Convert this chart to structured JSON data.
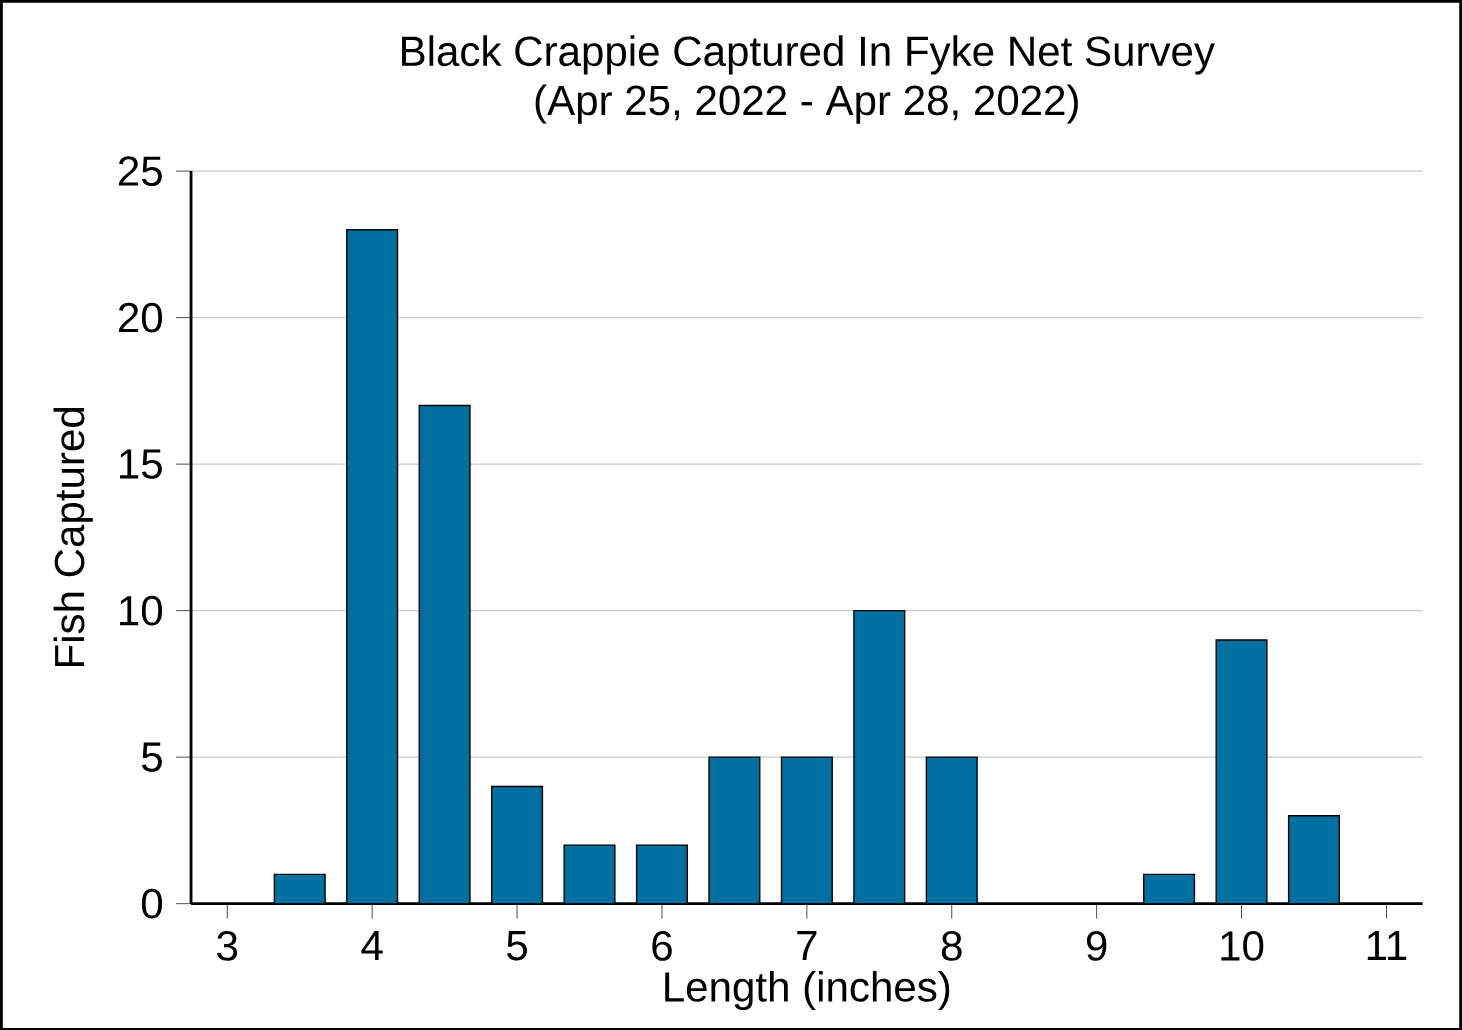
{
  "chart_data": {
    "type": "bar",
    "title": "Black Crappie Captured In Fyke Net Survey",
    "subtitle": "(Apr 25, 2022 - Apr 28, 2022)",
    "xlabel": "Length (inches)",
    "ylabel": "Fish Captured",
    "x": [
      3.5,
      4,
      4.5,
      5,
      5.5,
      6,
      6.5,
      7,
      7.5,
      8,
      9.5,
      10,
      10.5
    ],
    "values": [
      1,
      23,
      17,
      4,
      2,
      2,
      5,
      5,
      10,
      5,
      1,
      9,
      3
    ],
    "color": "#0070a0",
    "xlim": [
      2.75,
      11.25
    ],
    "xticks": [
      3,
      4,
      5,
      6,
      7,
      8,
      9,
      10,
      11
    ],
    "ylim": [
      0,
      25
    ],
    "yticks": [
      0,
      5,
      10,
      15,
      20,
      25
    ],
    "grid": "y"
  }
}
